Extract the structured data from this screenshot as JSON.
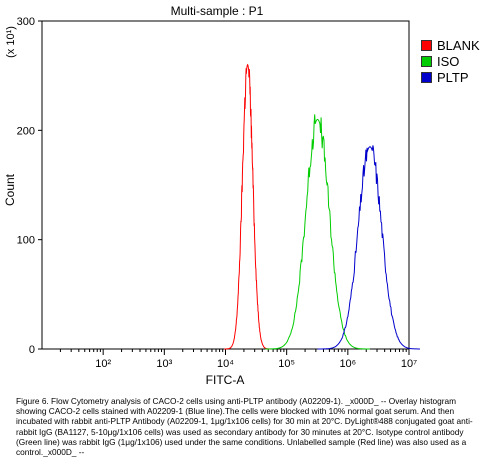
{
  "chart_data": {
    "type": "line",
    "title": "Multi-sample : P1",
    "xlabel": "FITC-A",
    "ylabel": "Count",
    "y_multiplier": "(x 10¹)",
    "x_scale": "log",
    "xlim": [
      10,
      10000000
    ],
    "ylim": [
      0,
      300
    ],
    "x_tick_labels": [
      "10²",
      "10³",
      "10⁴",
      "10⁵",
      "10⁶",
      "10⁷"
    ],
    "y_tick_labels": [
      "0",
      "100",
      "200",
      "300"
    ],
    "legend_position": "right",
    "series": [
      {
        "name": "BLANK",
        "color": "#ff0000",
        "peak_x": 23000,
        "peak_y": 260,
        "log_sigma": 0.085
      },
      {
        "name": "ISO",
        "color": "#00cc00",
        "peak_x": 320000,
        "peak_y": 210,
        "log_sigma": 0.19
      },
      {
        "name": "PLTP",
        "color": "#0000cc",
        "peak_x": 2300000,
        "peak_y": 185,
        "log_sigma": 0.19
      }
    ]
  },
  "caption": "Figure 6. Flow Cytometry analysis of CACO-2 cells using anti-PLTP antibody (A02209-1). _x000D_ -- Overlay histogram showing CACO-2 cells stained with A02209-1 (Blue line).The cells were blocked with 10% normal goat serum. And then incubated with rabbit anti-PLTP Antibody (A02209-1, 1μg/1x106 cells) for 30 min at 20°C. DyLight®488 conjugated goat anti-rabbit IgG (BA1127, 5-10μg/1x106 cells) was used as secondary antibody for 30 minutes at 20°C. Isotype control antibody (Green line) was rabbit IgG (1μg/1x106) used under the same conditions. Unlabelled sample (Red line) was also used as a control._x000D_ --"
}
